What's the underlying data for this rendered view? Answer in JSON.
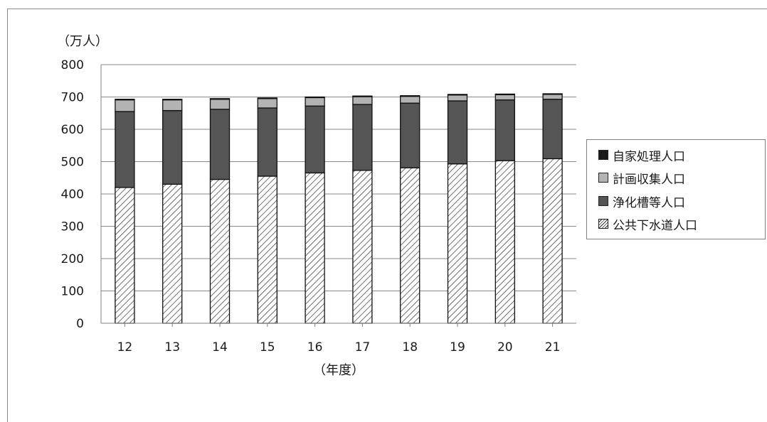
{
  "chart_data": {
    "type": "bar",
    "stacked": true,
    "categories": [
      "12",
      "13",
      "14",
      "15",
      "16",
      "17",
      "18",
      "19",
      "20",
      "21"
    ],
    "series": [
      {
        "name": "公共下水道人口",
        "values": [
          420,
          430,
          445,
          455,
          465,
          473,
          481,
          493,
          503,
          509
        ],
        "color": "#ffffff",
        "pattern": "diagonal-hatch"
      },
      {
        "name": "浄化槽等人口",
        "values": [
          235,
          228,
          217,
          211,
          207,
          204,
          200,
          195,
          188,
          184
        ],
        "color": "#555555"
      },
      {
        "name": "計画収集人口",
        "values": [
          36,
          33,
          31,
          29,
          26,
          24,
          21,
          18,
          16,
          15
        ],
        "color": "#b3b3b3"
      },
      {
        "name": "自家処理人口",
        "values": [
          2,
          2,
          2,
          2,
          2,
          2,
          2,
          2,
          2,
          2
        ],
        "color": "#1a1a1a"
      }
    ],
    "legend_order": [
      "自家処理人口",
      "計画収集人口",
      "浄化槽等人口",
      "公共下水道人口"
    ],
    "ylabel": "（万人）",
    "xlabel": "（年度）",
    "ylim": [
      0,
      800
    ],
    "yticks": [
      0,
      100,
      200,
      300,
      400,
      500,
      600,
      700,
      800
    ],
    "grid": true,
    "legend_position": "right"
  }
}
